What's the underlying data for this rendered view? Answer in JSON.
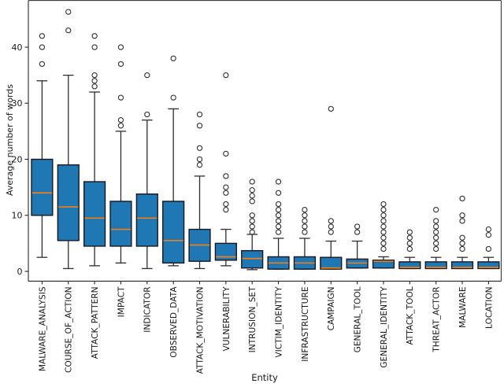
{
  "chart_data": {
    "type": "box",
    "title": "",
    "xlabel": "Entity",
    "ylabel": "Average number of words",
    "yticks": [
      0,
      10,
      20,
      30,
      40
    ],
    "ylim": [
      -1.8,
      48.3
    ],
    "grid": false,
    "legend": "none",
    "colors": {
      "box_fill": "#1f77b4",
      "box_edge": "#17171f",
      "median": "#ef7f1a",
      "whisker": "#2e2e2e",
      "outlier_edge": "#333333",
      "spine": "#262626",
      "text": "#1a1a1a"
    },
    "categories": [
      "MALWARE_ANALYSIS",
      "COURSE_OF_ACTION",
      "ATTACK_PATTERN",
      "IMPACT",
      "INDICATOR",
      "OBSERVED_DATA",
      "ATTACK_MOTIVATION",
      "VULNERABILITY",
      "INTRUSION_SET",
      "VICTIM_IDENTITY",
      "INFRASTRUCTURE",
      "CAMPAIGN",
      "GENERAL_TOOL",
      "GENERAL_IDENTITY",
      "ATTACK_TOOL",
      "THREAT_ACTOR",
      "MALWARE",
      "LOCATION"
    ],
    "boxes": [
      {
        "label": "MALWARE_ANALYSIS",
        "whisker_low": 2.5,
        "q1": 10,
        "median": 14,
        "q3": 20,
        "whisker_high": 34,
        "outliers": [
          37,
          40,
          42
        ]
      },
      {
        "label": "COURSE_OF_ACTION",
        "whisker_low": 0.5,
        "q1": 5.5,
        "median": 11.5,
        "q3": 19,
        "whisker_high": 35,
        "outliers": [
          43,
          46.3
        ]
      },
      {
        "label": "ATTACK_PATTERN",
        "whisker_low": 1,
        "q1": 4.5,
        "median": 9.5,
        "q3": 16,
        "whisker_high": 32,
        "outliers": [
          33,
          34,
          35,
          40,
          42
        ]
      },
      {
        "label": "IMPACT",
        "whisker_low": 1.5,
        "q1": 4.5,
        "median": 7.5,
        "q3": 12.5,
        "whisker_high": 25,
        "outliers": [
          26,
          27,
          31,
          37,
          40
        ]
      },
      {
        "label": "INDICATOR",
        "whisker_low": 0.5,
        "q1": 4.5,
        "median": 9.5,
        "q3": 13.8,
        "whisker_high": 27,
        "outliers": [
          28,
          35
        ]
      },
      {
        "label": "OBSERVED_DATA",
        "whisker_low": 1,
        "q1": 1.5,
        "median": 5.5,
        "q3": 12.5,
        "whisker_high": 29,
        "outliers": [
          31,
          38
        ]
      },
      {
        "label": "ATTACK_MOTIVATION",
        "whisker_low": 0.5,
        "q1": 1.8,
        "median": 4.7,
        "q3": 7.5,
        "whisker_high": 17,
        "outliers": [
          19,
          20,
          22,
          26,
          28
        ]
      },
      {
        "label": "VULNERABILITY",
        "whisker_low": 1,
        "q1": 2,
        "median": 2.6,
        "q3": 5,
        "whisker_high": 7.5,
        "outliers": [
          11,
          12,
          14,
          15,
          17,
          21,
          35
        ]
      },
      {
        "label": "INTRUSION_SET",
        "whisker_low": 0.3,
        "q1": 0.6,
        "median": 2.3,
        "q3": 3.7,
        "whisker_high": 6.6,
        "outliers": [
          7,
          8,
          9,
          10,
          12.5,
          13.5,
          14.5,
          16
        ]
      },
      {
        "label": "VICTIM_IDENTITY",
        "whisker_low": 0.4,
        "q1": 0.4,
        "median": 1.5,
        "q3": 2.6,
        "whisker_high": 5.9,
        "outliers": [
          7,
          8,
          9,
          10,
          11,
          12,
          14,
          16
        ]
      },
      {
        "label": "INFRASTRUCTURE",
        "whisker_low": 0.4,
        "q1": 0.4,
        "median": 1.5,
        "q3": 2.6,
        "whisker_high": 5.9,
        "outliers": [
          7,
          8,
          9,
          10,
          11
        ]
      },
      {
        "label": "CAMPAIGN",
        "whisker_low": 0.4,
        "q1": 0.4,
        "median": 0.6,
        "q3": 2.5,
        "whisker_high": 5.4,
        "outliers": [
          7,
          8,
          9,
          29
        ]
      },
      {
        "label": "GENERAL_TOOL",
        "whisker_low": 0.6,
        "q1": 0.6,
        "median": 1.5,
        "q3": 2.2,
        "whisker_high": 5.4,
        "outliers": [
          7,
          8
        ]
      },
      {
        "label": "GENERAL_IDENTITY",
        "whisker_low": 0.6,
        "q1": 0.6,
        "median": 1.8,
        "q3": 2.0,
        "whisker_high": 2.6,
        "outliers": [
          4,
          5,
          6,
          7,
          8,
          9,
          10,
          11,
          12
        ]
      },
      {
        "label": "ATTACK_TOOL",
        "whisker_low": 0.5,
        "q1": 0.5,
        "median": 0.7,
        "q3": 1.7,
        "whisker_high": 2.5,
        "outliers": [
          4,
          5,
          6,
          7
        ]
      },
      {
        "label": "THREAT_ACTOR",
        "whisker_low": 0.5,
        "q1": 0.5,
        "median": 0.7,
        "q3": 1.7,
        "whisker_high": 2.5,
        "outliers": [
          4,
          5,
          6,
          7,
          8,
          9,
          11
        ]
      },
      {
        "label": "MALWARE",
        "whisker_low": 0.5,
        "q1": 0.5,
        "median": 0.7,
        "q3": 1.7,
        "whisker_high": 2.5,
        "outliers": [
          4,
          5,
          6,
          9,
          10,
          13
        ]
      },
      {
        "label": "LOCATION",
        "whisker_low": 0.5,
        "q1": 0.5,
        "median": 0.7,
        "q3": 1.7,
        "whisker_high": 2.5,
        "outliers": [
          4,
          6.5,
          7.5
        ]
      }
    ]
  }
}
